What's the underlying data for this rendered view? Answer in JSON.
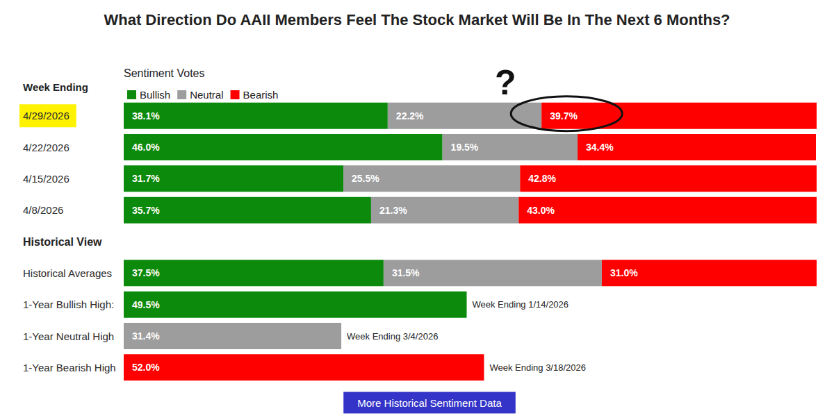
{
  "chart_data": {
    "type": "bar",
    "orientation": "horizontal",
    "stacked": true,
    "data_labels": true,
    "grid": false,
    "tick_labels": "y",
    "legend": "top-left",
    "title": "What Direction Do AAII Members Feel The Stock Market Will Be In The Next 6 Months?",
    "legend_title": "Sentiment Votes",
    "category_header": "Week Ending",
    "categories": [
      "4/29/2026",
      "4/22/2026",
      "4/15/2026",
      "4/8/2026",
      "Historical View",
      "Historical Averages",
      "1-Year Bullish High:",
      "1-Year Neutral High",
      "1-Year Bearish High"
    ],
    "xlim": [
      0,
      100
    ],
    "series": [
      {
        "name": "Bullish",
        "color": "#0b8a0b",
        "values": [
          38.1,
          46.0,
          31.7,
          35.7,
          null,
          37.5,
          49.5,
          null,
          null
        ],
        "value_labels": [
          "38.1%",
          "46.0%",
          "31.7%",
          "35.7%",
          null,
          "37.5%",
          "49.5%",
          null,
          null
        ]
      },
      {
        "name": "Neutral",
        "color": "#9d9d9d",
        "values": [
          22.2,
          19.5,
          25.5,
          21.3,
          null,
          31.5,
          null,
          31.4,
          null
        ],
        "value_labels": [
          "22.2%",
          "19.5%",
          "25.5%",
          "21.3%",
          null,
          "31.5%",
          null,
          "31.4%",
          null
        ]
      },
      {
        "name": "Bearish",
        "color": "#ff0000",
        "values": [
          39.7,
          34.4,
          42.8,
          43.0,
          null,
          31.0,
          null,
          null,
          52.0
        ],
        "value_labels": [
          "39.7%",
          "34.4%",
          "42.8%",
          "43.0%",
          null,
          "31.0%",
          null,
          null,
          "52.0%"
        ]
      }
    ],
    "notes": [
      {
        "category": "1-Year Bullish High:",
        "series": "Bullish",
        "text": "Week Ending 1/14/2026"
      },
      {
        "category": "1-Year Neutral High",
        "series": "Neutral",
        "text": "Week Ending 3/4/2026"
      },
      {
        "category": "1-Year Bearish High",
        "series": "Bearish",
        "text": "Week Ending 3/18/2026"
      }
    ],
    "marks": [
      {
        "category": "4/29/2026",
        "series": "Bearish",
        "text": "?"
      }
    ],
    "button": "More Historical Sentiment Data"
  }
}
